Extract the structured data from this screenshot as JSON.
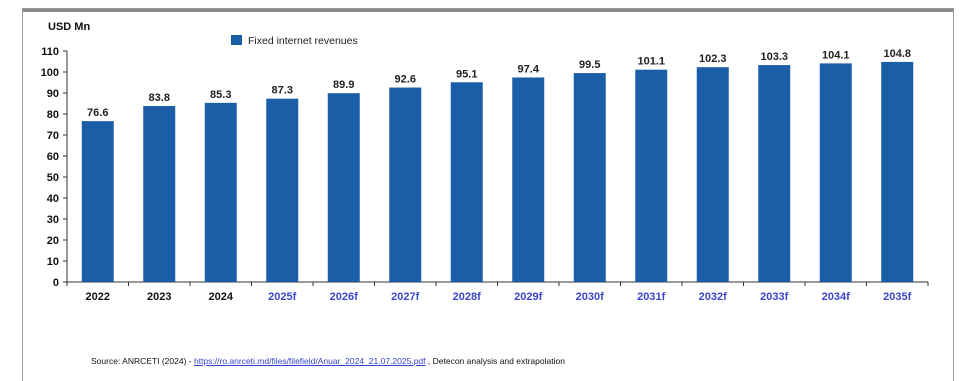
{
  "chart_data": {
    "type": "bar",
    "ylabel": "USD Mn",
    "ylim": [
      0,
      110
    ],
    "yticks": [
      0,
      10,
      20,
      30,
      40,
      50,
      60,
      70,
      80,
      90,
      100,
      110
    ],
    "categories": [
      "2022",
      "2023",
      "2024",
      "2025f",
      "2026f",
      "2027f",
      "2028f",
      "2029f",
      "2030f",
      "2031f",
      "2032f",
      "2033f",
      "2034f",
      "2035f"
    ],
    "forecast_flags": [
      false,
      false,
      false,
      true,
      true,
      true,
      true,
      true,
      true,
      true,
      true,
      true,
      true,
      true
    ],
    "series": [
      {
        "name": "Fixed internet revenues",
        "values": [
          76.6,
          83.8,
          85.3,
          87.3,
          89.9,
          92.6,
          95.1,
          97.4,
          99.5,
          101.1,
          102.3,
          103.3,
          104.1,
          104.8
        ],
        "labels": [
          "76.6",
          "83.8",
          "85.3",
          "87.3",
          "89.9",
          "92.6",
          "95.1",
          "97.4",
          "99.5",
          "101.1",
          "102.3",
          "103.3",
          "104.1",
          "104.8"
        ],
        "color": "#1a5ea8"
      }
    ],
    "legend": "top-left",
    "grid": false
  },
  "colors": {
    "bar": "#1a5ea8",
    "actual_tick": "#111111",
    "forecast_tick": "#3a46c8"
  },
  "source": {
    "prefix": "Source: ANRCETI (2024) - ",
    "link": "https://ro.anrceti.md/files/filefield/Anuar_2024_21.07.2025.pdf",
    "suffix": " , Detecon analysis and extrapolation"
  }
}
